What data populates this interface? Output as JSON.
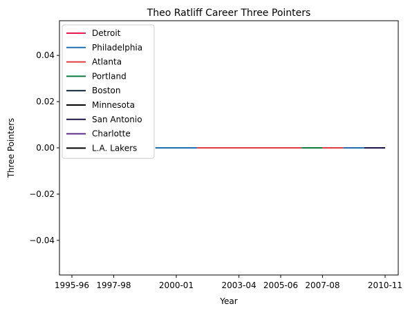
{
  "chart_data": {
    "type": "line",
    "title": "Theo Ratliff Career Three Pointers",
    "xlabel": "Year",
    "ylabel": "Three Pointers",
    "x": [
      "1995-96",
      "1996-97",
      "1997-98",
      "1998-99",
      "1999-00",
      "2000-01",
      "2001-02",
      "2002-03",
      "2003-04",
      "2004-05",
      "2005-06",
      "2006-07",
      "2007-08",
      "2008-09",
      "2009-10",
      "2010-11"
    ],
    "x_tick_labels": [
      "1995-96",
      "1997-98",
      "2000-01",
      "2003-04",
      "2005-06",
      "2007-08",
      "2010-11"
    ],
    "y_tick_labels": [
      "0.04",
      "0.02",
      "0.00",
      "−0.02",
      "−0.04"
    ],
    "y_tick_values": [
      0.04,
      0.02,
      0.0,
      -0.02,
      -0.04
    ],
    "ylim": [
      -0.055,
      0.055
    ],
    "grid": false,
    "legend_placement": "top-left",
    "series": [
      {
        "name": "Detroit",
        "color": "#e31b4f",
        "x": [
          "1995-96",
          "1996-97"
        ],
        "values": [
          0,
          0
        ]
      },
      {
        "name": "Philadelphia",
        "color": "#1f6fb0",
        "x": [
          "1996-97",
          "1997-98",
          "1998-99",
          "1999-00",
          "2000-01",
          "2001-02",
          "2002-03"
        ],
        "values": [
          0,
          0,
          0,
          0,
          0,
          0,
          0
        ]
      },
      {
        "name": "Atlanta",
        "color": "#e03a3e",
        "x": [
          "2002-03",
          "2003-04",
          "2004-05",
          "2005-06",
          "2006-07"
        ],
        "values": [
          0,
          0,
          0,
          0,
          0
        ]
      },
      {
        "name": "Portland",
        "color": "#0a7a3e",
        "x": [
          "2006-07",
          "2007-08"
        ],
        "values": [
          0,
          0
        ]
      },
      {
        "name": "Boston",
        "color": "#0b2333",
        "x": [
          "2007-08",
          "2008-09"
        ],
        "values": [
          0,
          0
        ]
      },
      {
        "name": "Minnesota",
        "color": "#000000",
        "x": [
          "2007-08",
          "2008-09"
        ],
        "values": [
          0,
          0
        ]
      },
      {
        "name": "San Antonio",
        "color": "#1a1446",
        "x": [
          "2008-09",
          "2009-10"
        ],
        "values": [
          0,
          0
        ]
      },
      {
        "name": "Charlotte",
        "color": "#5b2c83",
        "x": [
          "2009-10",
          "2010-11"
        ],
        "values": [
          0,
          0
        ]
      },
      {
        "name": "L.A. Lakers",
        "color": "#000000",
        "x": [
          "2010-11"
        ],
        "values": [
          0
        ]
      }
    ],
    "visible_segments": [
      {
        "series": "Philadelphia",
        "from": "1999-00",
        "to": "2001-02",
        "color": "#1f6fb0"
      },
      {
        "series": "Atlanta",
        "from": "2001-02",
        "to": "2006-07",
        "color": "#e03a3e"
      },
      {
        "series": "Portland",
        "from": "2006-07",
        "to": "2007-08",
        "color": "#0a7a3e"
      },
      {
        "series": "Atlanta",
        "from": "2007-08",
        "to": "2008-09",
        "color": "#e03a3e"
      },
      {
        "series": "Philadelphia",
        "from": "2008-09",
        "to": "2009-10",
        "color": "#1f6fb0"
      },
      {
        "series": "San Antonio",
        "from": "2009-10",
        "to": "2010-11",
        "color": "#1a1446"
      }
    ]
  }
}
